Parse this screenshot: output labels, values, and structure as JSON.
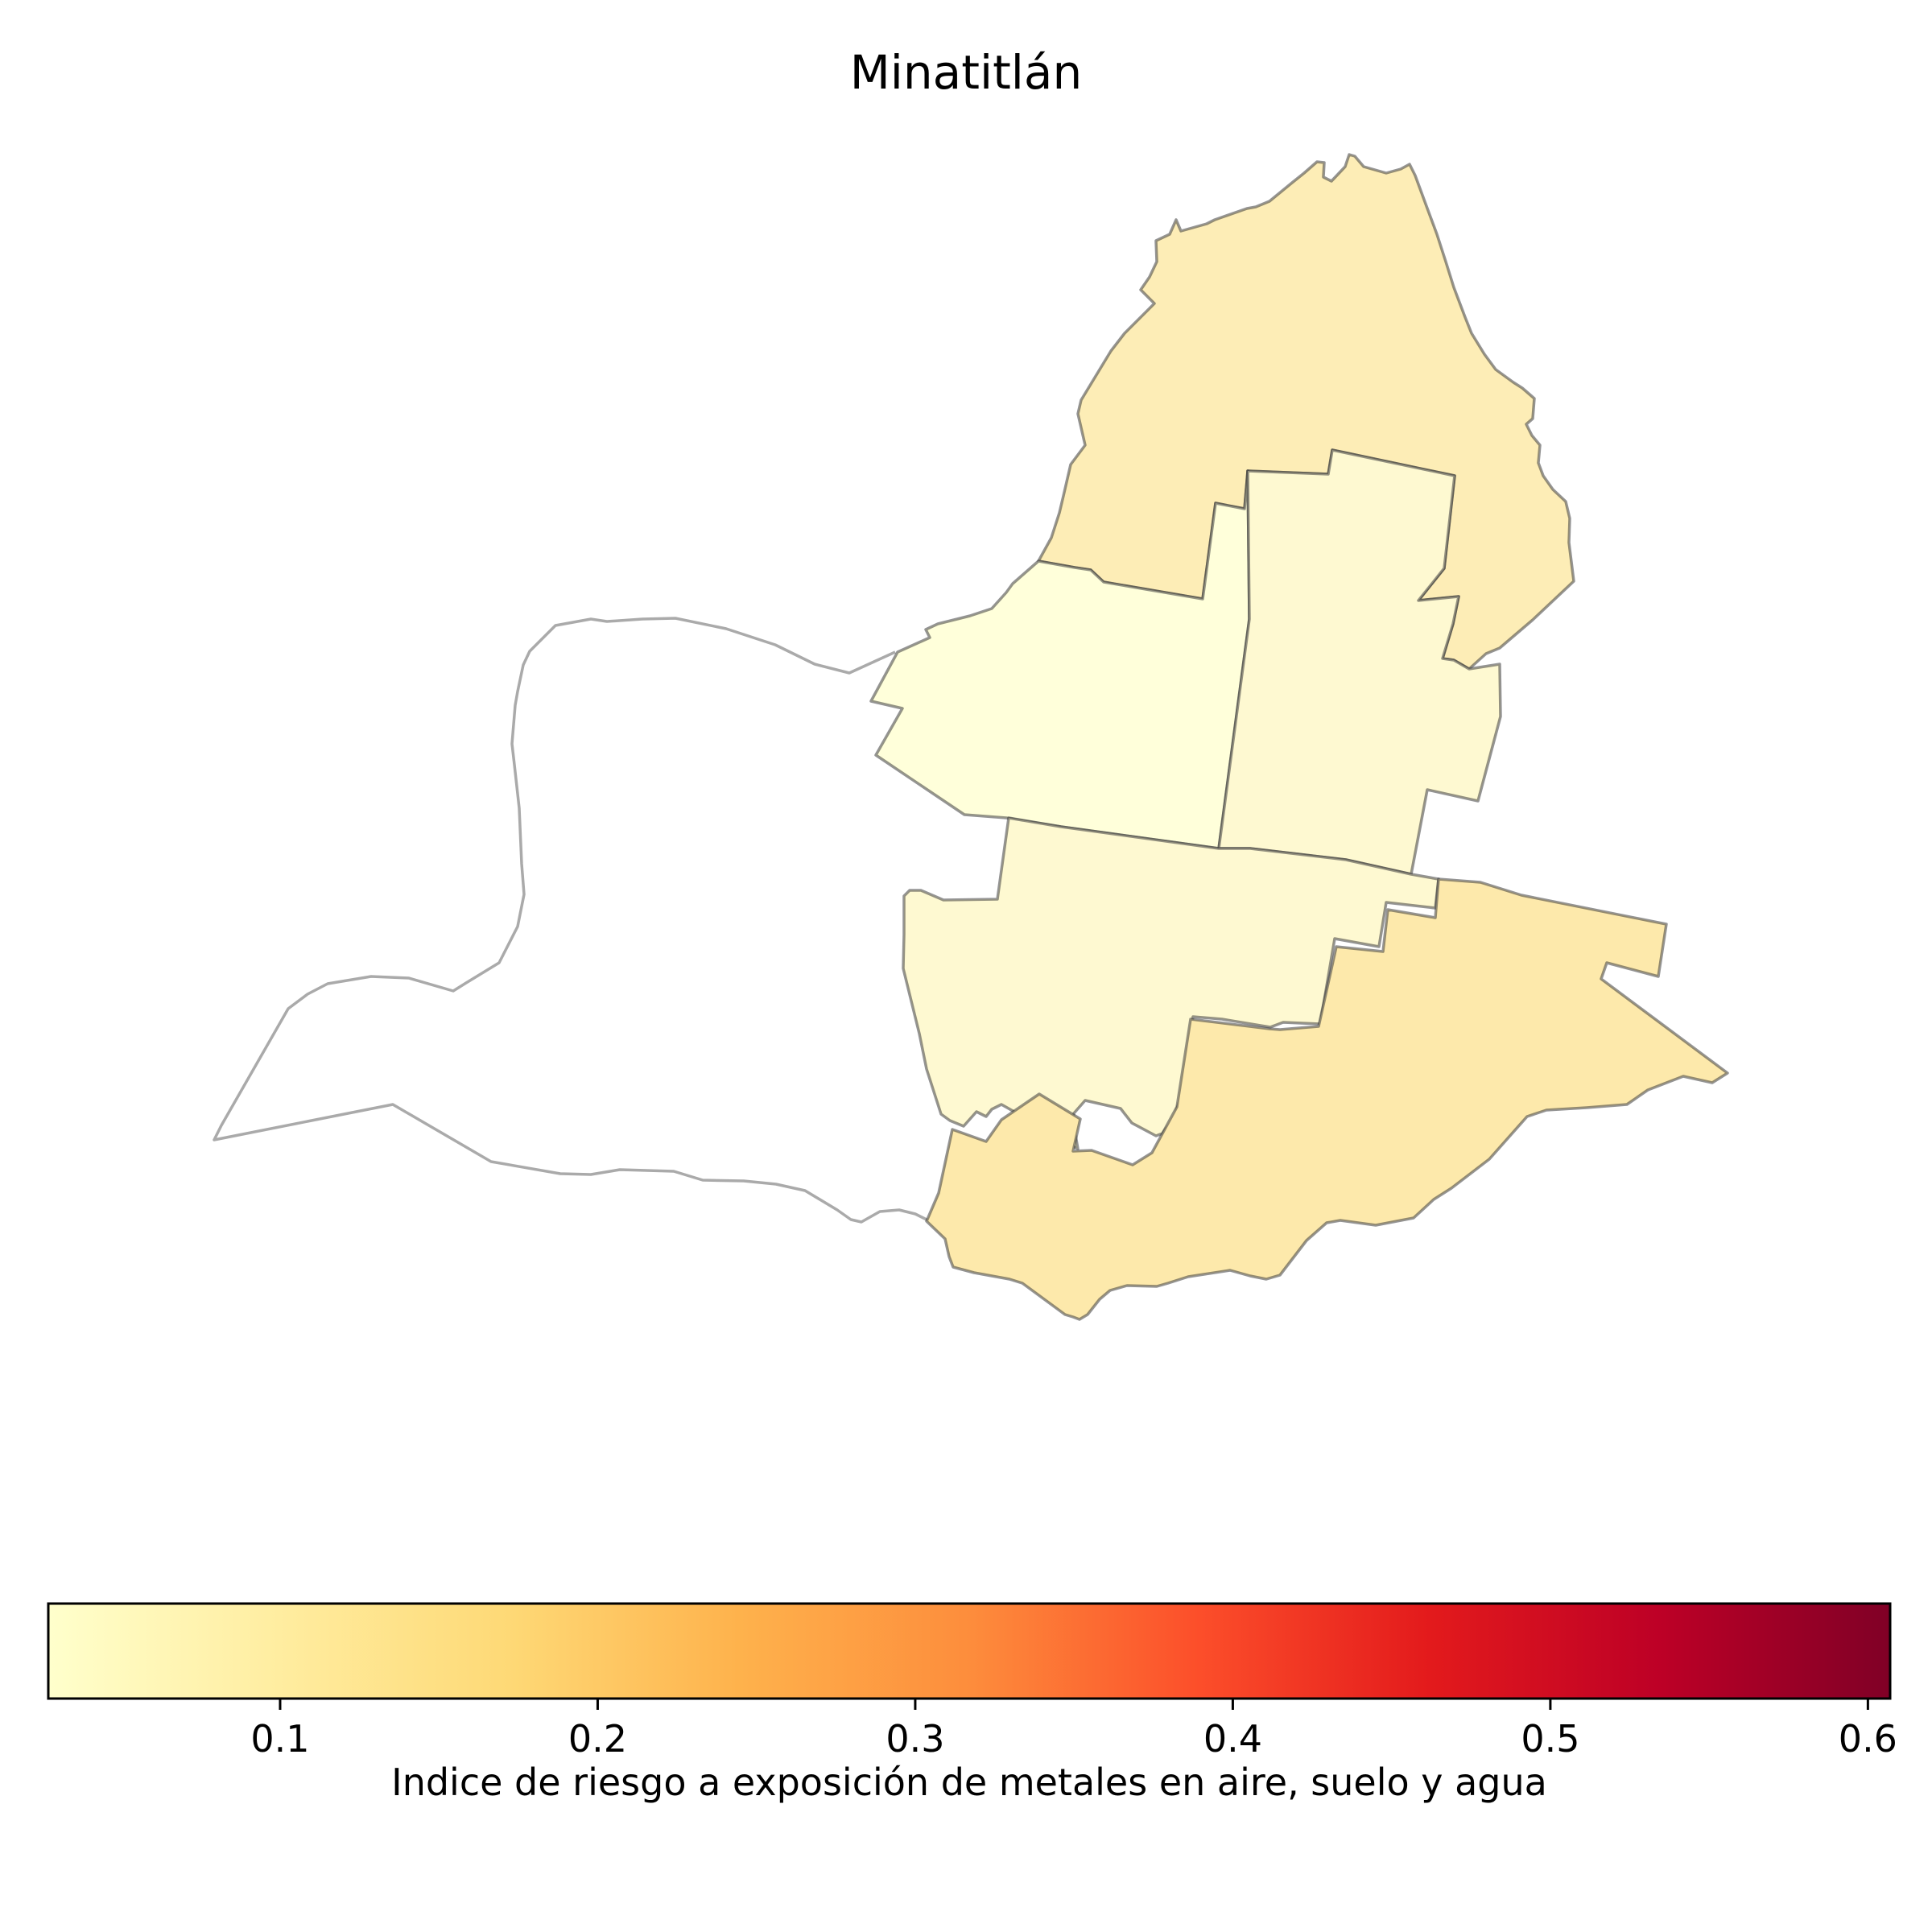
{
  "map": {
    "title": "Minatitlán",
    "regions": [
      {
        "name": "north",
        "value": 0.13,
        "fill": "#fdedb6"
      },
      {
        "name": "center-west",
        "value": 0.04,
        "fill": "#ffffda"
      },
      {
        "name": "center-east",
        "value": 0.07,
        "fill": "#fef9d1"
      },
      {
        "name": "south-center",
        "value": 0.07,
        "fill": "#fef9d1"
      },
      {
        "name": "south-east",
        "value": 0.14,
        "fill": "#fde9ab"
      },
      {
        "name": "west",
        "value": null,
        "fill": "none"
      }
    ]
  },
  "colorbar": {
    "label": "Indice de riesgo a exposición de metales en aire, suelo y agua",
    "min": 0.027,
    "max": 0.607,
    "colormap": "YlOrRd",
    "stops": [
      "#ffffcc",
      "#ffeda0",
      "#fed976",
      "#feb24c",
      "#fd8d3c",
      "#fc4e2a",
      "#e31a1c",
      "#bd0026",
      "#800026"
    ],
    "ticks": [
      "0.1",
      "0.2",
      "0.3",
      "0.4",
      "0.5",
      "0.6"
    ]
  }
}
